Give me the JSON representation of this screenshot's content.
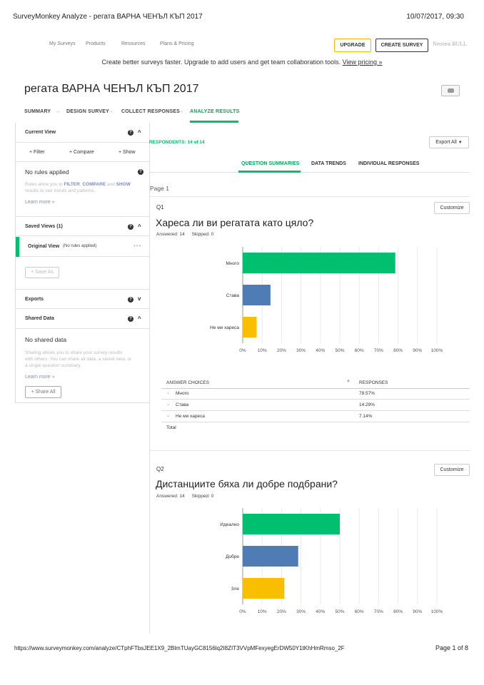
{
  "print": {
    "header_left": "SurveyMonkey Analyze - регата ВАРНА ЧЕНЪЛ КЪП 2017",
    "header_right": "10/07/2017, 09:30",
    "footer_url": "https://www.surveymonkey.com/analyze/CTphFTbsJEE1X9_2BlmTUayGC8156lq2I8ZIT3VVpMFexyegErDW50Y1tKhHmRmso_2F",
    "footer_page": "Page 1 of 8"
  },
  "nav": {
    "items": [
      "My Surveys",
      "Products",
      "Resources",
      "Plans & Pricing"
    ],
    "upgrade": "UPGRADE",
    "create": "CREATE SURVEY",
    "user": "Nestea BULL"
  },
  "promo": {
    "text": "Create better surveys faster. Upgrade to add users and get team collaboration tools.",
    "link": "View pricing »"
  },
  "survey_title": "регата ВАРНА ЧЕНЪЛ КЪП 2017",
  "steps": [
    "SUMMARY",
    "DESIGN SURVEY",
    "COLLECT RESPONSES",
    "ANALYZE RESULTS"
  ],
  "sidebar": {
    "current_view": "Current View",
    "filter": "+ Filter",
    "compare": "+ Compare",
    "show": "+ Show",
    "no_rules": "No rules applied",
    "rules_help_a": "Rules allow you to",
    "rules_filter": "FILTER",
    "rules_comma": ",",
    "rules_compare": "COMPARE",
    "rules_and": "and",
    "rules_show": "SHOW",
    "rules_help_b": "results to see trends and patterns.",
    "learn_more": "Learn more »",
    "saved_views": "Saved Views (1)",
    "original_view": "Original View",
    "original_view_note": "(No rules applied)",
    "save_as": "+ Save As",
    "exports": "Exports",
    "shared_data": "Shared Data",
    "no_shared": "No shared data",
    "shared_help_1": "Sharing allows you to share your survey results",
    "shared_help_2": "with others. You can share all data, a saved view, or",
    "shared_help_3": "a single question summary.",
    "learn_more_2": "Learn more »",
    "share_all": "+ Share All"
  },
  "respondents": "RESPONDENTS: 14 of 14",
  "export_all": "Export All",
  "tabs": [
    "QUESTION SUMMARIES",
    "DATA TRENDS",
    "INDIVIDUAL RESPONSES"
  ],
  "page_label": "Page 1",
  "customize_label": "Customize",
  "questions": [
    {
      "num": "Q1",
      "title": "Хареса ли ви регатата като цяло?",
      "answered": "Answered: 14",
      "skipped": "Skipped: 0",
      "table": {
        "col1": "ANSWER CHOICES",
        "col2": "RESPONSES",
        "rows": [
          {
            "choice": "Много",
            "pct": "78.57%"
          },
          {
            "choice": "Става",
            "pct": "14.29%"
          },
          {
            "choice": "Не ми хареса",
            "pct": "7.14%"
          }
        ],
        "total": "Total"
      }
    },
    {
      "num": "Q2",
      "title": "Дистанциите бяха ли добре подбрани?",
      "answered": "Answered: 14",
      "skipped": "Skipped: 0"
    }
  ],
  "chart_data": [
    {
      "type": "bar",
      "orientation": "horizontal",
      "categories": [
        "Много",
        "Става",
        "Не ми хареса"
      ],
      "values": [
        78.57,
        14.29,
        7.14
      ],
      "colors": [
        "#00bf6f",
        "#507cb6",
        "#f9be00"
      ],
      "xlim": [
        0,
        100
      ],
      "xticks": [
        "0%",
        "10%",
        "20%",
        "30%",
        "40%",
        "50%",
        "60%",
        "70%",
        "80%",
        "90%",
        "100%"
      ],
      "grid": true
    },
    {
      "type": "bar",
      "orientation": "horizontal",
      "categories": [
        "Идеално",
        "Добре",
        "Зле"
      ],
      "values": [
        50,
        28.57,
        21.43
      ],
      "colors": [
        "#00bf6f",
        "#507cb6",
        "#f9be00"
      ],
      "xlim": [
        0,
        100
      ],
      "xticks": [
        "0%",
        "10%",
        "20%",
        "30%",
        "40%",
        "50%",
        "60%",
        "70%",
        "80%",
        "90%",
        "100%"
      ],
      "grid": true
    }
  ]
}
